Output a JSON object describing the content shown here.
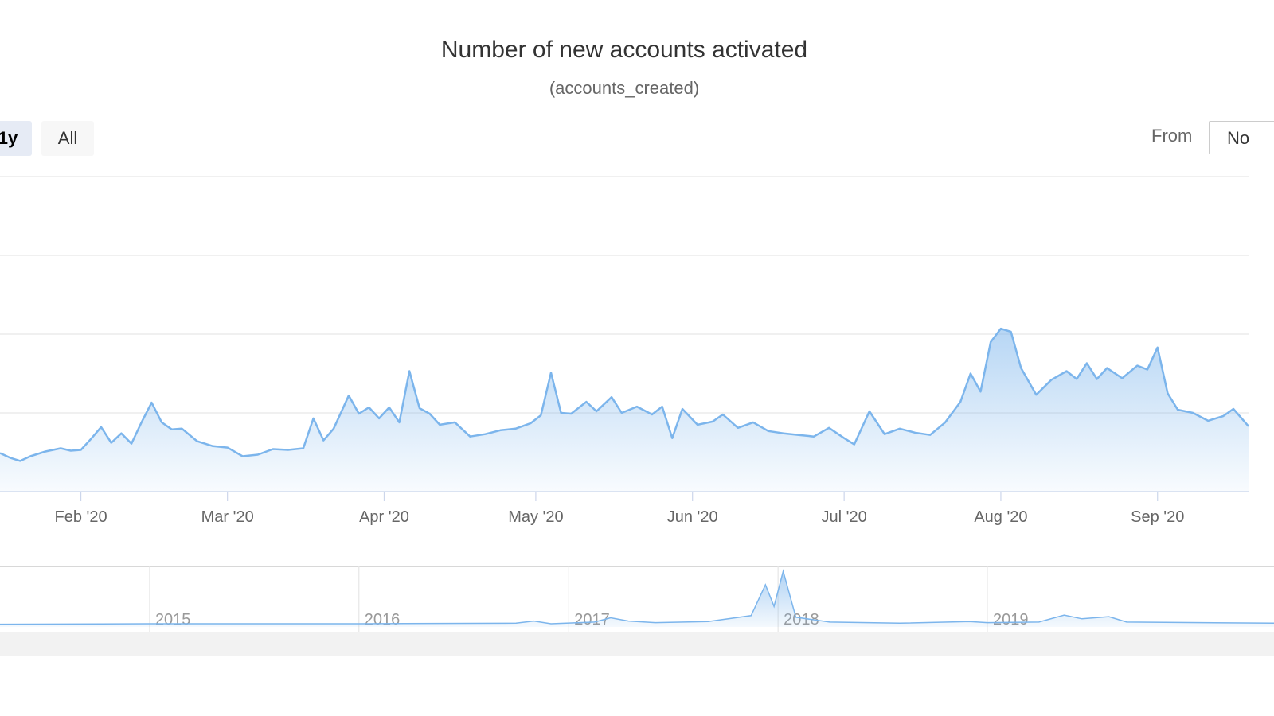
{
  "header": {
    "title": "Number of new accounts activated",
    "subtitle": "(accounts_created)"
  },
  "range_selector": {
    "buttons": [
      {
        "label": "1y",
        "active": true
      },
      {
        "label": "All",
        "active": false
      }
    ],
    "from_label": "From",
    "from_value": "No"
  },
  "chart_data": {
    "type": "area",
    "title": "Number of new accounts activated",
    "subtitle": "(accounts_created)",
    "xlabel": "",
    "ylabel": "",
    "grid": true,
    "series_color": "#7cb5ec",
    "x_ticks": [
      "Feb '20",
      "Mar '20",
      "Apr '20",
      "May '20",
      "Jun '20",
      "Jul '20",
      "Aug '20",
      "Sep '20"
    ],
    "x_tick_dates": [
      "2020-02-01",
      "2020-03-01",
      "2020-04-01",
      "2020-05-01",
      "2020-06-01",
      "2020-07-01",
      "2020-08-01",
      "2020-09-01"
    ],
    "x_range": [
      "2020-01-16",
      "2020-09-19"
    ],
    "y_relative_range": [
      0,
      4
    ],
    "series": [
      {
        "values_relative": [
          [
            "2020-01-16",
            0.49
          ],
          [
            "2020-01-18",
            0.43
          ],
          [
            "2020-01-20",
            0.39
          ],
          [
            "2020-01-22",
            0.45
          ],
          [
            "2020-01-25",
            0.51
          ],
          [
            "2020-01-28",
            0.55
          ],
          [
            "2020-01-30",
            0.52
          ],
          [
            "2020-02-01",
            0.53
          ],
          [
            "2020-02-03",
            0.67
          ],
          [
            "2020-02-05",
            0.82
          ],
          [
            "2020-02-07",
            0.62
          ],
          [
            "2020-02-09",
            0.74
          ],
          [
            "2020-02-11",
            0.61
          ],
          [
            "2020-02-13",
            0.88
          ],
          [
            "2020-02-15",
            1.13
          ],
          [
            "2020-02-17",
            0.88
          ],
          [
            "2020-02-19",
            0.79
          ],
          [
            "2020-02-21",
            0.8
          ],
          [
            "2020-02-24",
            0.64
          ],
          [
            "2020-02-27",
            0.58
          ],
          [
            "2020-03-01",
            0.56
          ],
          [
            "2020-03-04",
            0.45
          ],
          [
            "2020-03-07",
            0.47
          ],
          [
            "2020-03-10",
            0.54
          ],
          [
            "2020-03-13",
            0.53
          ],
          [
            "2020-03-16",
            0.55
          ],
          [
            "2020-03-18",
            0.93
          ],
          [
            "2020-03-20",
            0.65
          ],
          [
            "2020-03-22",
            0.8
          ],
          [
            "2020-03-25",
            1.22
          ],
          [
            "2020-03-27",
            0.99
          ],
          [
            "2020-03-29",
            1.07
          ],
          [
            "2020-03-31",
            0.93
          ],
          [
            "2020-04-02",
            1.07
          ],
          [
            "2020-04-04",
            0.88
          ],
          [
            "2020-04-06",
            1.53
          ],
          [
            "2020-04-08",
            1.06
          ],
          [
            "2020-04-10",
            0.99
          ],
          [
            "2020-04-12",
            0.85
          ],
          [
            "2020-04-15",
            0.88
          ],
          [
            "2020-04-18",
            0.7
          ],
          [
            "2020-04-21",
            0.73
          ],
          [
            "2020-04-24",
            0.78
          ],
          [
            "2020-04-27",
            0.8
          ],
          [
            "2020-04-30",
            0.87
          ],
          [
            "2020-05-02",
            0.97
          ],
          [
            "2020-05-04",
            1.51
          ],
          [
            "2020-05-06",
            1.0
          ],
          [
            "2020-05-08",
            0.99
          ],
          [
            "2020-05-11",
            1.14
          ],
          [
            "2020-05-13",
            1.02
          ],
          [
            "2020-05-16",
            1.2
          ],
          [
            "2020-05-18",
            1.0
          ],
          [
            "2020-05-21",
            1.08
          ],
          [
            "2020-05-24",
            0.98
          ],
          [
            "2020-05-26",
            1.08
          ],
          [
            "2020-05-28",
            0.68
          ],
          [
            "2020-05-30",
            1.05
          ],
          [
            "2020-06-02",
            0.85
          ],
          [
            "2020-06-05",
            0.89
          ],
          [
            "2020-06-07",
            0.98
          ],
          [
            "2020-06-10",
            0.81
          ],
          [
            "2020-06-13",
            0.88
          ],
          [
            "2020-06-16",
            0.77
          ],
          [
            "2020-06-19",
            0.74
          ],
          [
            "2020-06-22",
            0.72
          ],
          [
            "2020-06-25",
            0.7
          ],
          [
            "2020-06-28",
            0.81
          ],
          [
            "2020-07-01",
            0.68
          ],
          [
            "2020-07-03",
            0.6
          ],
          [
            "2020-07-06",
            1.02
          ],
          [
            "2020-07-09",
            0.73
          ],
          [
            "2020-07-12",
            0.8
          ],
          [
            "2020-07-15",
            0.75
          ],
          [
            "2020-07-18",
            0.72
          ],
          [
            "2020-07-21",
            0.88
          ],
          [
            "2020-07-24",
            1.14
          ],
          [
            "2020-07-26",
            1.5
          ],
          [
            "2020-07-28",
            1.27
          ],
          [
            "2020-07-30",
            1.9
          ],
          [
            "2020-08-01",
            2.07
          ],
          [
            "2020-08-03",
            2.03
          ],
          [
            "2020-08-05",
            1.57
          ],
          [
            "2020-08-08",
            1.23
          ],
          [
            "2020-08-11",
            1.42
          ],
          [
            "2020-08-14",
            1.53
          ],
          [
            "2020-08-16",
            1.43
          ],
          [
            "2020-08-18",
            1.63
          ],
          [
            "2020-08-20",
            1.43
          ],
          [
            "2020-08-22",
            1.57
          ],
          [
            "2020-08-25",
            1.44
          ],
          [
            "2020-08-28",
            1.6
          ],
          [
            "2020-08-30",
            1.55
          ],
          [
            "2020-09-01",
            1.83
          ],
          [
            "2020-09-03",
            1.25
          ],
          [
            "2020-09-05",
            1.04
          ],
          [
            "2020-09-08",
            1.0
          ],
          [
            "2020-09-11",
            0.9
          ],
          [
            "2020-09-14",
            0.96
          ],
          [
            "2020-09-16",
            1.05
          ],
          [
            "2020-09-19",
            0.83
          ]
        ]
      }
    ],
    "navigator": {
      "years": [
        "2015",
        "2016",
        "2017",
        "2018",
        "2019"
      ],
      "year_dates": [
        "2015-01-01",
        "2016-01-01",
        "2017-01-01",
        "2018-01-01",
        "2019-01-01"
      ],
      "x_range": [
        "2014-04-15",
        "2020-05-15"
      ],
      "values_relative": [
        [
          "2014-04-15",
          0.02
        ],
        [
          "2015-01-01",
          0.03
        ],
        [
          "2016-01-01",
          0.03
        ],
        [
          "2016-10-01",
          0.04
        ],
        [
          "2016-11-01",
          0.08
        ],
        [
          "2016-12-01",
          0.03
        ],
        [
          "2017-02-15",
          0.06
        ],
        [
          "2017-03-15",
          0.14
        ],
        [
          "2017-04-15",
          0.08
        ],
        [
          "2017-06-01",
          0.05
        ],
        [
          "2017-09-01",
          0.07
        ],
        [
          "2017-11-15",
          0.18
        ],
        [
          "2017-12-10",
          0.75
        ],
        [
          "2017-12-25",
          0.35
        ],
        [
          "2018-01-10",
          1.0
        ],
        [
          "2018-02-01",
          0.15
        ],
        [
          "2018-04-01",
          0.06
        ],
        [
          "2018-08-01",
          0.04
        ],
        [
          "2018-12-01",
          0.07
        ],
        [
          "2019-01-01",
          0.05
        ],
        [
          "2019-04-01",
          0.06
        ],
        [
          "2019-05-15",
          0.19
        ],
        [
          "2019-06-15",
          0.12
        ],
        [
          "2019-08-01",
          0.16
        ],
        [
          "2019-09-01",
          0.06
        ],
        [
          "2020-05-15",
          0.04
        ]
      ]
    }
  }
}
